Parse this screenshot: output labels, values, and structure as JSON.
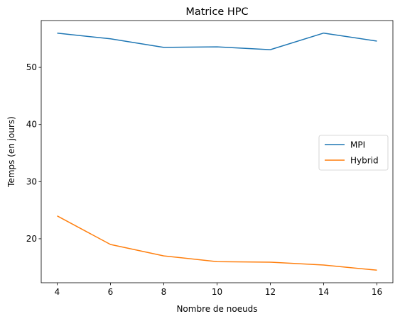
{
  "chart_data": {
    "type": "line",
    "title": "Matrice HPC",
    "xlabel": "Nombre de noeuds",
    "ylabel": "Temps (en jours)",
    "x": [
      4,
      6,
      8,
      10,
      12,
      14,
      16
    ],
    "xticks": [
      "4",
      "6",
      "8",
      "10",
      "12",
      "14",
      "16"
    ],
    "yticks": [
      "20",
      "30",
      "40",
      "50"
    ],
    "xlim": [
      3.4,
      16.6
    ],
    "ylim": [
      12.3,
      58.2
    ],
    "grid": false,
    "legend_position": "center-right",
    "series": [
      {
        "name": "MPI",
        "color": "#1f77b4",
        "values": [
          56.0,
          55.0,
          53.5,
          53.6,
          53.1,
          56.0,
          54.6
        ]
      },
      {
        "name": "Hybrid",
        "color": "#ff7f0e",
        "values": [
          24.0,
          19.0,
          17.0,
          16.0,
          15.9,
          15.4,
          14.5
        ]
      }
    ]
  }
}
